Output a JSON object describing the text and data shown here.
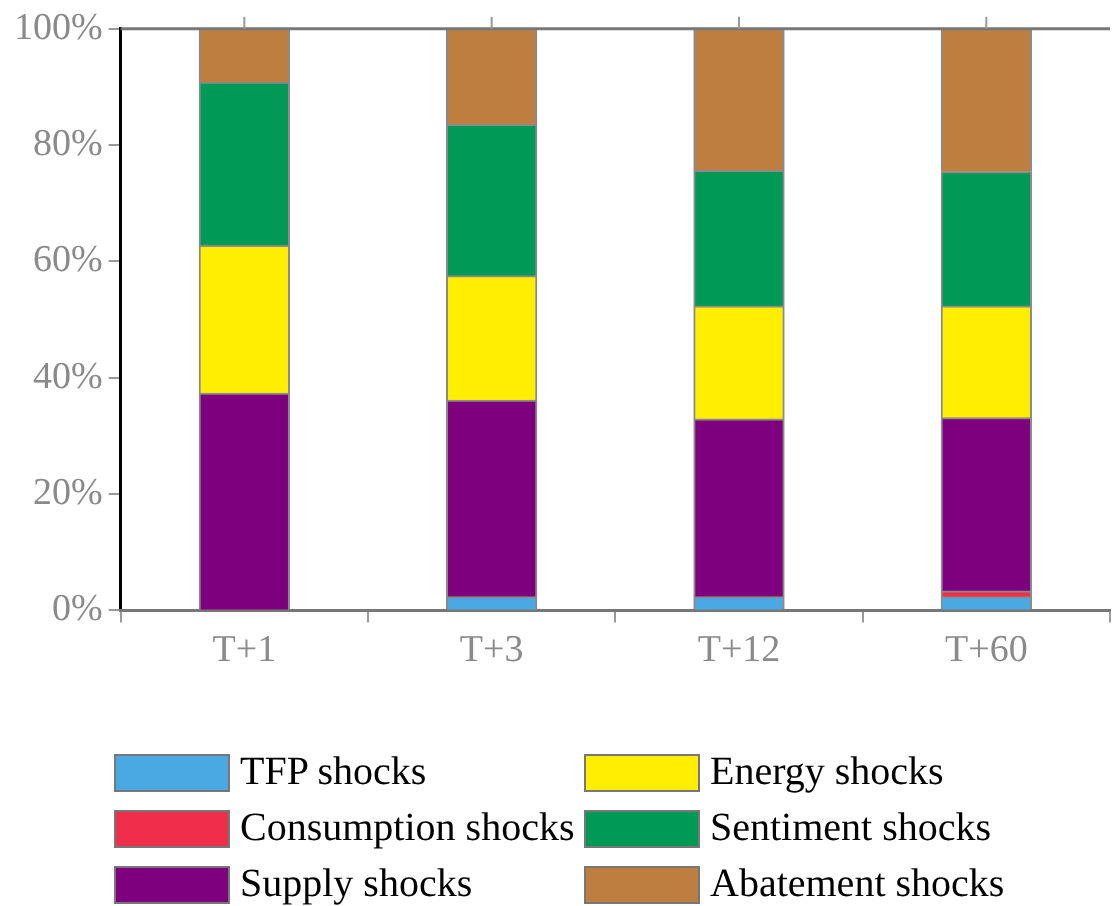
{
  "chart_data": {
    "type": "bar",
    "stacked": true,
    "categories": [
      "T+1",
      "T+3",
      "T+12",
      "T+60"
    ],
    "series": [
      {
        "name": "TFP shocks",
        "color": "#4aa9e3",
        "values": [
          0,
          2.3,
          2.3,
          2.3
        ]
      },
      {
        "name": "Consumption shocks",
        "color": "#ee2e4a",
        "values": [
          0,
          0,
          0,
          1.0
        ]
      },
      {
        "name": "Supply shocks",
        "color": "#7f007f",
        "values": [
          37.3,
          33.8,
          30.6,
          29.8
        ]
      },
      {
        "name": "Energy shocks",
        "color": "#ffee00",
        "values": [
          25.4,
          21.4,
          19.4,
          19.2
        ]
      },
      {
        "name": "Sentiment shocks",
        "color": "#009955",
        "values": [
          28.1,
          26.0,
          23.3,
          23.1
        ]
      },
      {
        "name": "Abatement shocks",
        "color": "#be7e40",
        "values": [
          9.2,
          16.5,
          24.4,
          24.6
        ]
      }
    ],
    "ylim": [
      0,
      100
    ],
    "yticks": [
      {
        "value": 0,
        "label": "0%"
      },
      {
        "value": 20,
        "label": "20%"
      },
      {
        "value": 40,
        "label": "40%"
      },
      {
        "value": 60,
        "label": "60%"
      },
      {
        "value": 80,
        "label": "80%"
      },
      {
        "value": 100,
        "label": "100%"
      }
    ],
    "grid": false,
    "legend": "bottom"
  }
}
